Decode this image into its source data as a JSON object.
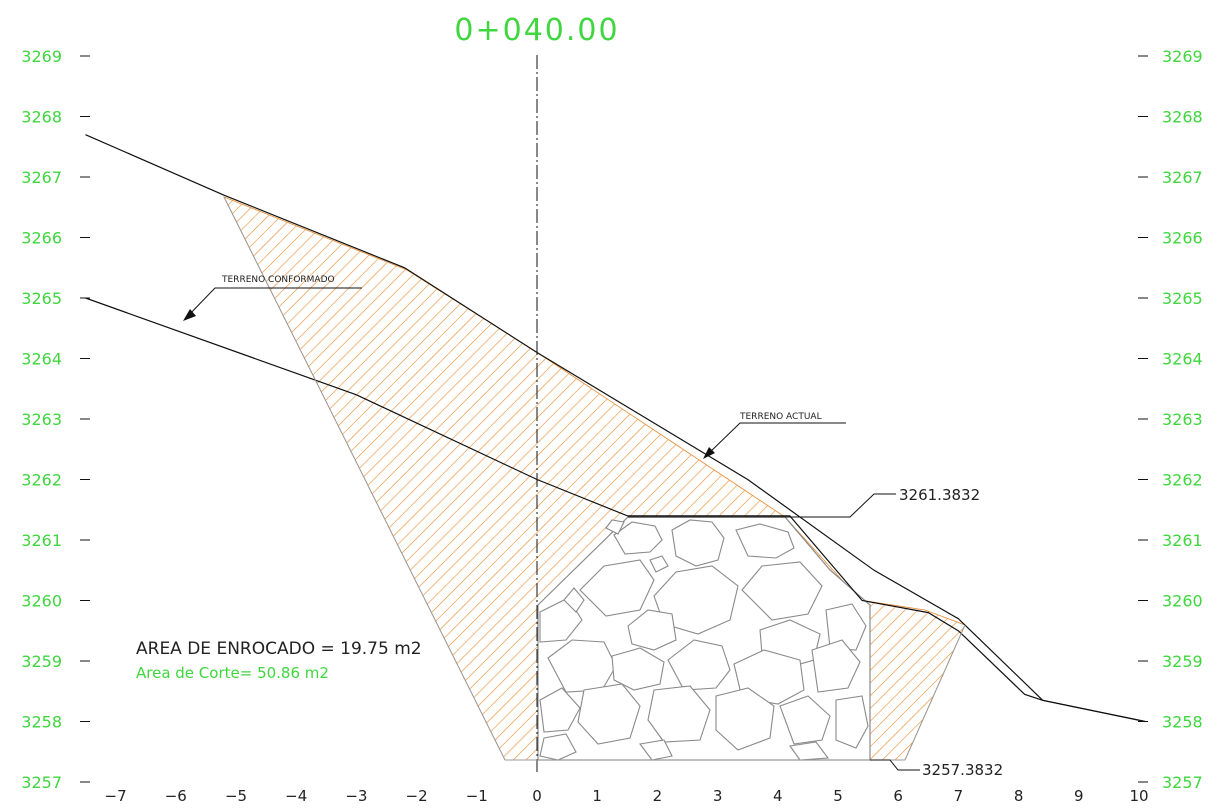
{
  "station": "0+040.00",
  "colors": {
    "green": "#3fd63f",
    "hatch": "#e88a2e",
    "line": "#111111",
    "rock": "#8a8a8a"
  },
  "axis": {
    "y_left_ticks": [
      3269,
      3268,
      3267,
      3266,
      3265,
      3264,
      3263,
      3262,
      3261,
      3260,
      3259,
      3258,
      3257
    ],
    "y_right_ticks": [
      3269,
      3268,
      3267,
      3266,
      3265,
      3264,
      3263,
      3262,
      3261,
      3260,
      3259,
      3258,
      3257
    ],
    "x_ticks": [
      -7,
      -6,
      -5,
      -4,
      -3,
      -2,
      -1,
      0,
      1,
      2,
      3,
      4,
      5,
      6,
      7,
      8,
      9,
      10
    ]
  },
  "labels": {
    "terreno_conformado": "TERRENO CONFORMADO",
    "terreno_actual": "TERRENO ACTUAL",
    "elev_top": "3261.3832",
    "elev_bottom": "3257.3832",
    "area_enrocado": "AREA DE ENROCADO = 19.75 m2",
    "area_corte": "Area de Corte= 50.86 m2"
  },
  "terrain": {
    "actual": [
      [
        -7.5,
        3267.7
      ],
      [
        -5.2,
        3266.7
      ],
      [
        -2.2,
        3265.5
      ],
      [
        0,
        3264.1
      ],
      [
        3.5,
        3262.0
      ],
      [
        5.6,
        3260.5
      ],
      [
        7,
        3259.7
      ],
      [
        8.4,
        3258.35
      ],
      [
        10.1,
        3258.0
      ]
    ],
    "conformado": [
      [
        -7.5,
        3265.0
      ],
      [
        -3,
        3263.4
      ],
      [
        0,
        3262.0
      ],
      [
        1.5,
        3261.4
      ],
      [
        4.2,
        3261.4
      ],
      [
        5.4,
        3260.0
      ],
      [
        6.5,
        3259.8
      ],
      [
        7,
        3259.5
      ],
      [
        8.1,
        3258.45
      ],
      [
        8.4,
        3258.35
      ],
      [
        10.1,
        3258.0
      ]
    ]
  }
}
